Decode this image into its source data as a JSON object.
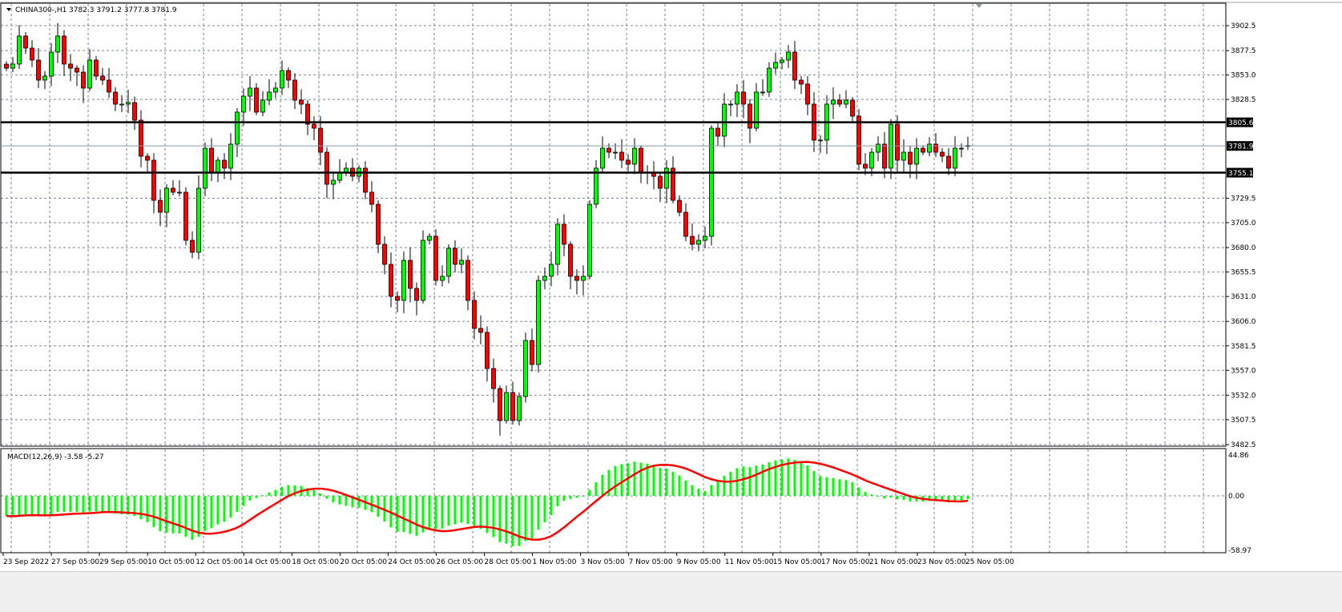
{
  "header": {
    "menu_icon": "triangle-down-icon",
    "symbol_label": "CHINA300-,H1",
    "ohlc_label": "3782.3 3791.2 3777.8 3781.9"
  },
  "indicator": {
    "label": "MACD(12,26,9) -3.58 -5.27"
  },
  "colors": {
    "bull": "#00ff00",
    "bear": "#ff0000",
    "histogram": "#00ff00",
    "signal": "#ff0000",
    "grid": "#7a8796",
    "levels": "#000000",
    "bid_line": "#8899a6"
  },
  "chart_data": [
    {
      "type": "candlestick",
      "title": "CHINA300-,H1",
      "grid": true,
      "ylim": [
        3482.5,
        3902.5
      ],
      "y_ticks": [
        "3902.5",
        "3877.5",
        "3853.0",
        "3828.5",
        "3805.6",
        "3781.9",
        "3755.1",
        "3729.5",
        "3705.0",
        "3680.0",
        "3655.5",
        "3631.0",
        "3606.0",
        "3581.5",
        "3557.0",
        "3532.0",
        "3507.5",
        "3482.5"
      ],
      "x_tick_labels": [
        "23 Sep 2022",
        "27 Sep 05:00",
        "29 Sep 05:00",
        "10 Oct 05:00",
        "12 Oct 05:00",
        "14 Oct 05:00",
        "18 Oct 05:00",
        "20 Oct 05:00",
        "24 Oct 05:00",
        "26 Oct 05:00",
        "28 Oct 05:00",
        "1 Nov 05:00",
        "3 Nov 05:00",
        "7 Nov 05:00",
        "9 Nov 05:00",
        "11 Nov 05:00",
        "15 Nov 05:00",
        "17 Nov 05:00",
        "21 Nov 05:00",
        "23 Nov 05:00",
        "25 Nov 05:00"
      ],
      "horizontal_levels": [
        {
          "value": 3805.6,
          "label": "3805.6",
          "style": "thick"
        },
        {
          "value": 3755.1,
          "label": "3755.1",
          "style": "thick"
        },
        {
          "value": 3781.9,
          "label": "3781.9",
          "style": "bid"
        }
      ],
      "close": [
        3859.9,
        3864.0,
        3892.1,
        3880.0,
        3868.0,
        3847.9,
        3851.9,
        3876.0,
        3892.1,
        3864.0,
        3859.9,
        3855.9,
        3839.9,
        3868.0,
        3851.9,
        3847.9,
        3835.9,
        3823.8,
        3823.8,
        3825.4,
        3807.7,
        3771.6,
        3767.6,
        3727.4,
        3715.4,
        3739.5,
        3735.5,
        3735.5,
        3687.3,
        3675.3,
        3739.5,
        3779.6,
        3755.6,
        3767.6,
        3759.6,
        3783.7,
        3815.8,
        3831.8,
        3839.9,
        3815.8,
        3827.8,
        3835.9,
        3839.9,
        3857.5,
        3847.9,
        3827.8,
        3823.8,
        3803.7,
        3799.7,
        3775.6,
        3743.5,
        3747.5,
        3755.6,
        3759.6,
        3751.5,
        3759.6,
        3735.5,
        3723.4,
        3683.3,
        3663.2,
        3631.1,
        3627.1,
        3667.2,
        3639.1,
        3627.1,
        3687.3,
        3691.3,
        3647.1,
        3651.2,
        3679.3,
        3663.2,
        3667.2,
        3627.1,
        3599.0,
        3595.0,
        3558.8,
        3538.7,
        3506.6,
        3534.7,
        3506.6,
        3530.7,
        3586.9,
        3562.8,
        3647.1,
        3651.2,
        3663.2,
        3703.4,
        3683.3,
        3651.2,
        3647.1,
        3651.2,
        3723.4,
        3759.6,
        3779.6,
        3775.6,
        3775.6,
        3767.6,
        3763.6,
        3779.6,
        3755.6,
        3755.6,
        3751.5,
        3739.5,
        3759.6,
        3727.4,
        3715.4,
        3691.3,
        3683.3,
        3687.3,
        3691.3,
        3799.7,
        3791.7,
        3823.8,
        3823.8,
        3835.9,
        3823.8,
        3799.7,
        3835.9,
        3835.9,
        3859.9,
        3865.6,
        3868.0,
        3876.0,
        3847.9,
        3843.9,
        3823.8,
        3787.7,
        3787.7,
        3823.8,
        3827.8,
        3823.8,
        3827.8,
        3811.8,
        3763.6,
        3759.6,
        3775.6,
        3783.7,
        3759.6,
        3803.7,
        3767.6,
        3775.6,
        3763.6,
        3779.6,
        3775.6,
        3783.7,
        3775.6,
        3771.6,
        3759.6,
        3779.6,
        3779.6,
        3781.9
      ],
      "last_bar": {
        "open": 3782.3,
        "high": 3791.2,
        "low": 3777.8,
        "close": 3781.9
      }
    },
    {
      "type": "bar+line",
      "title": "MACD(12,26,9)",
      "params": [
        12,
        26,
        9
      ],
      "current": {
        "macd": -3.58,
        "signal": -5.27
      },
      "ylim": [
        -58.97,
        44.86
      ],
      "y_ticks": [
        "44.86",
        "0.00",
        "-58.97"
      ]
    }
  ]
}
